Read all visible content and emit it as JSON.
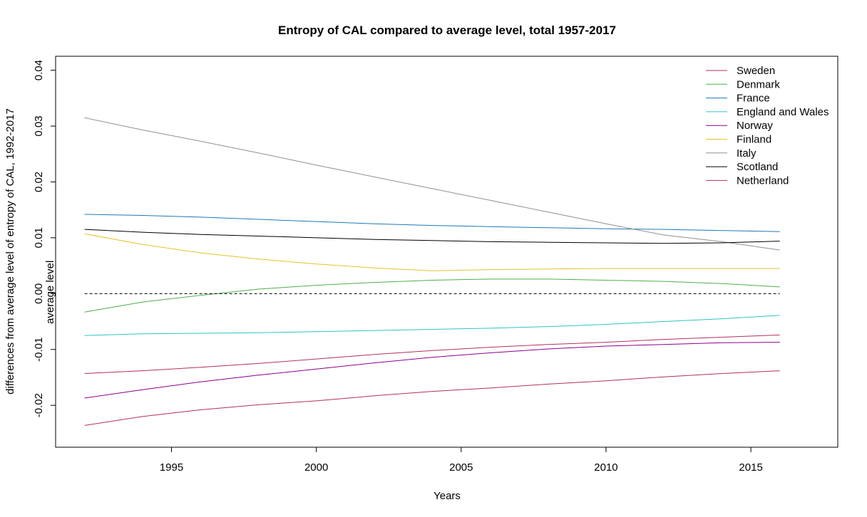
{
  "chart_data": {
    "type": "line",
    "title": "Entropy of CAL compared to average level, total 1957-2017",
    "xlabel": "Years",
    "ylabel": "differences from average level of entropy of CAL, 1992-2017",
    "xlim": [
      1991,
      2018
    ],
    "ylim": [
      -0.0275,
      0.0425
    ],
    "xticks": [
      1995,
      2000,
      2005,
      2010,
      2015
    ],
    "xtick_labels": [
      "1995",
      "2000",
      "2005",
      "2010",
      "2015"
    ],
    "yticks": [
      -0.02,
      -0.01,
      0.0,
      0.01,
      0.02,
      0.03,
      0.04
    ],
    "ytick_labels": [
      "-0.02",
      "-0.01",
      "0.00",
      "0.01",
      "0.02",
      "0.03",
      "0.04"
    ],
    "grid": false,
    "legend_position": "top-right",
    "reference_line": {
      "y": 0.0,
      "x_range": [
        1992,
        2016
      ],
      "label": "average level",
      "style": "dashed",
      "color": "#000000"
    },
    "x": [
      1992,
      1994,
      1996,
      1998,
      2000,
      2002,
      2004,
      2006,
      2008,
      2010,
      2012,
      2014,
      2016
    ],
    "series": [
      {
        "name": "Sweden",
        "color": "#b03060",
        "values": [
          -0.0143,
          -0.0138,
          -0.0132,
          -0.0125,
          -0.0117,
          -0.0109,
          -0.0102,
          -0.0096,
          -0.0091,
          -0.0087,
          -0.0082,
          -0.0078,
          -0.0074
        ]
      },
      {
        "name": "Denmark",
        "color": "#4daf4a",
        "values": [
          -0.0033,
          -0.0015,
          -0.0003,
          0.0008,
          0.0015,
          0.002,
          0.0024,
          0.0026,
          0.0026,
          0.0024,
          0.0022,
          0.0018,
          0.0012
        ]
      },
      {
        "name": "France",
        "color": "#1f78b4",
        "values": [
          0.0142,
          0.014,
          0.0137,
          0.0133,
          0.0129,
          0.0125,
          0.0122,
          0.012,
          0.0118,
          0.0116,
          0.0115,
          0.0113,
          0.0111
        ]
      },
      {
        "name": "England and Wales",
        "color": "#2ec4c4",
        "values": [
          -0.0075,
          -0.0072,
          -0.0071,
          -0.007,
          -0.0068,
          -0.0066,
          -0.0064,
          -0.0062,
          -0.0059,
          -0.0055,
          -0.005,
          -0.0045,
          -0.0039
        ]
      },
      {
        "name": "Norway",
        "color": "#8b008b",
        "values": [
          -0.0187,
          -0.0172,
          -0.0158,
          -0.0146,
          -0.0135,
          -0.0124,
          -0.0114,
          -0.0106,
          -0.0099,
          -0.0094,
          -0.0091,
          -0.0088,
          -0.0087
        ]
      },
      {
        "name": "Finland",
        "color": "#e6c229",
        "values": [
          0.0107,
          0.0088,
          0.0073,
          0.0062,
          0.0053,
          0.0046,
          0.0041,
          0.0043,
          0.0044,
          0.0045,
          0.0045,
          0.0045,
          0.0045
        ]
      },
      {
        "name": "Italy",
        "color": "#909090",
        "values": [
          0.0315,
          0.0293,
          0.0273,
          0.0252,
          0.023,
          0.0209,
          0.0188,
          0.0167,
          0.0146,
          0.0125,
          0.0105,
          0.0093,
          0.0078
        ]
      },
      {
        "name": "Scotland",
        "color": "#000000",
        "values": [
          0.0115,
          0.011,
          0.0106,
          0.0103,
          0.01,
          0.0097,
          0.0095,
          0.0093,
          0.0092,
          0.0091,
          0.009,
          0.0091,
          0.0094
        ]
      },
      {
        "name": "Netherland",
        "color": "#b03060",
        "values": [
          -0.0236,
          -0.022,
          -0.0208,
          -0.0199,
          -0.0192,
          -0.0183,
          -0.0175,
          -0.0169,
          -0.0162,
          -0.0156,
          -0.0149,
          -0.0143,
          -0.0138
        ]
      }
    ]
  }
}
